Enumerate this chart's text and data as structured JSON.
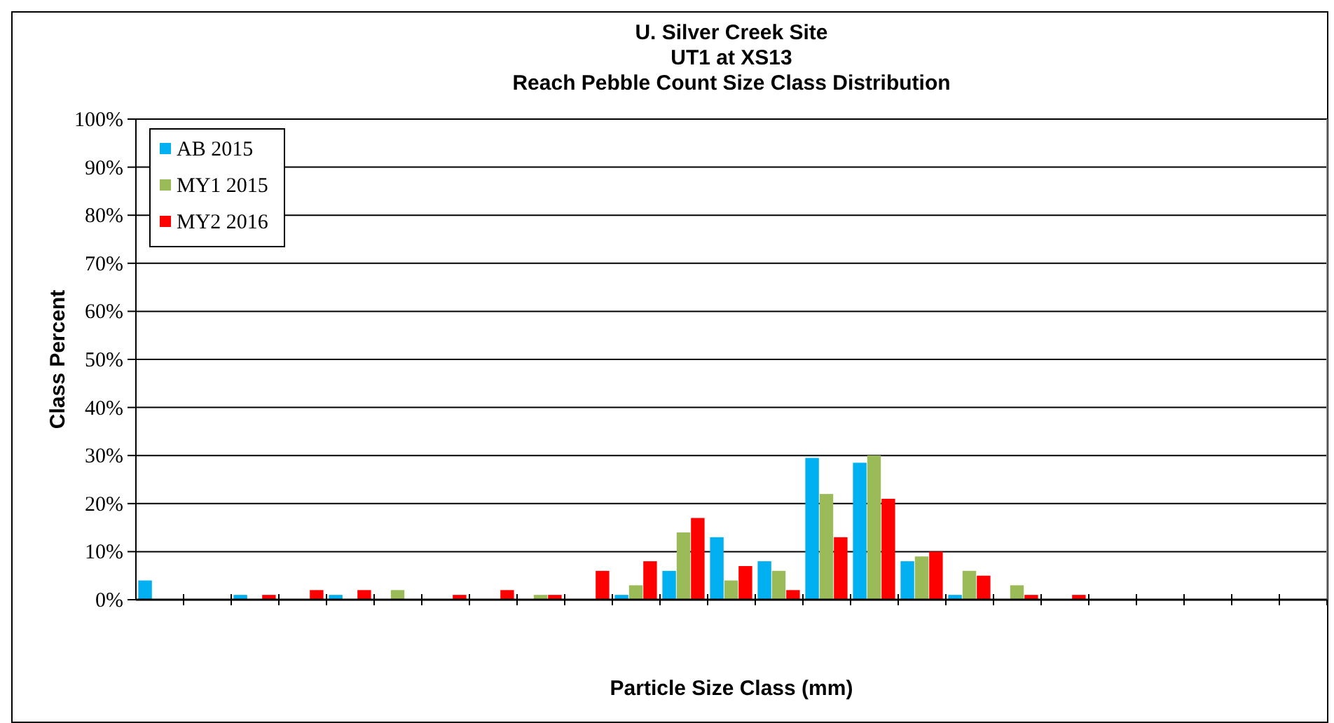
{
  "chart_data": {
    "type": "bar",
    "title": "U. Silver Creek Site\nUT1 at XS13\nReach Pebble Count Size Class Distribution",
    "xlabel": "Particle Size Class (mm)",
    "ylabel": "Class Percent",
    "categories": [
      null,
      null,
      null,
      null,
      null,
      null,
      null,
      null,
      null,
      null,
      null,
      null,
      null,
      null,
      null,
      null,
      null,
      null,
      null,
      null,
      null,
      null,
      null,
      null,
      null
    ],
    "series": [
      {
        "name": "AB 2015",
        "color": "#00b0f0",
        "values": [
          4,
          0,
          1,
          0,
          1,
          0,
          0,
          0,
          0,
          0,
          1,
          6,
          13,
          8,
          29.5,
          28.5,
          8,
          1,
          0,
          0,
          0,
          0,
          0,
          0,
          0
        ]
      },
      {
        "name": "MY1 2015",
        "color": "#9bbb59",
        "values": [
          0,
          0,
          0,
          0,
          0,
          2,
          0,
          0,
          1,
          0,
          3,
          14,
          4,
          6,
          22,
          30,
          9,
          6,
          3,
          0,
          0,
          0,
          0,
          0,
          0
        ]
      },
      {
        "name": "MY2 2016",
        "color": "#ff0000",
        "values": [
          0,
          0,
          1,
          2,
          2,
          0,
          1,
          2,
          1,
          6,
          8,
          17,
          7,
          2,
          13,
          21,
          10,
          5,
          1,
          1,
          0,
          0,
          0,
          0,
          0
        ]
      }
    ],
    "ylim": [
      0,
      100
    ],
    "yticks": [
      {
        "value": 0,
        "label": "0%"
      },
      {
        "value": 10,
        "label": "10%"
      },
      {
        "value": 20,
        "label": "20%"
      },
      {
        "value": 30,
        "label": "30%"
      },
      {
        "value": 40,
        "label": "40%"
      },
      {
        "value": 50,
        "label": "50%"
      },
      {
        "value": 60,
        "label": "60%"
      },
      {
        "value": 70,
        "label": "70%"
      },
      {
        "value": 80,
        "label": "80%"
      },
      {
        "value": 90,
        "label": "90%"
      },
      {
        "value": 100,
        "label": "100%"
      }
    ],
    "grid": "y",
    "legend": "top left"
  }
}
